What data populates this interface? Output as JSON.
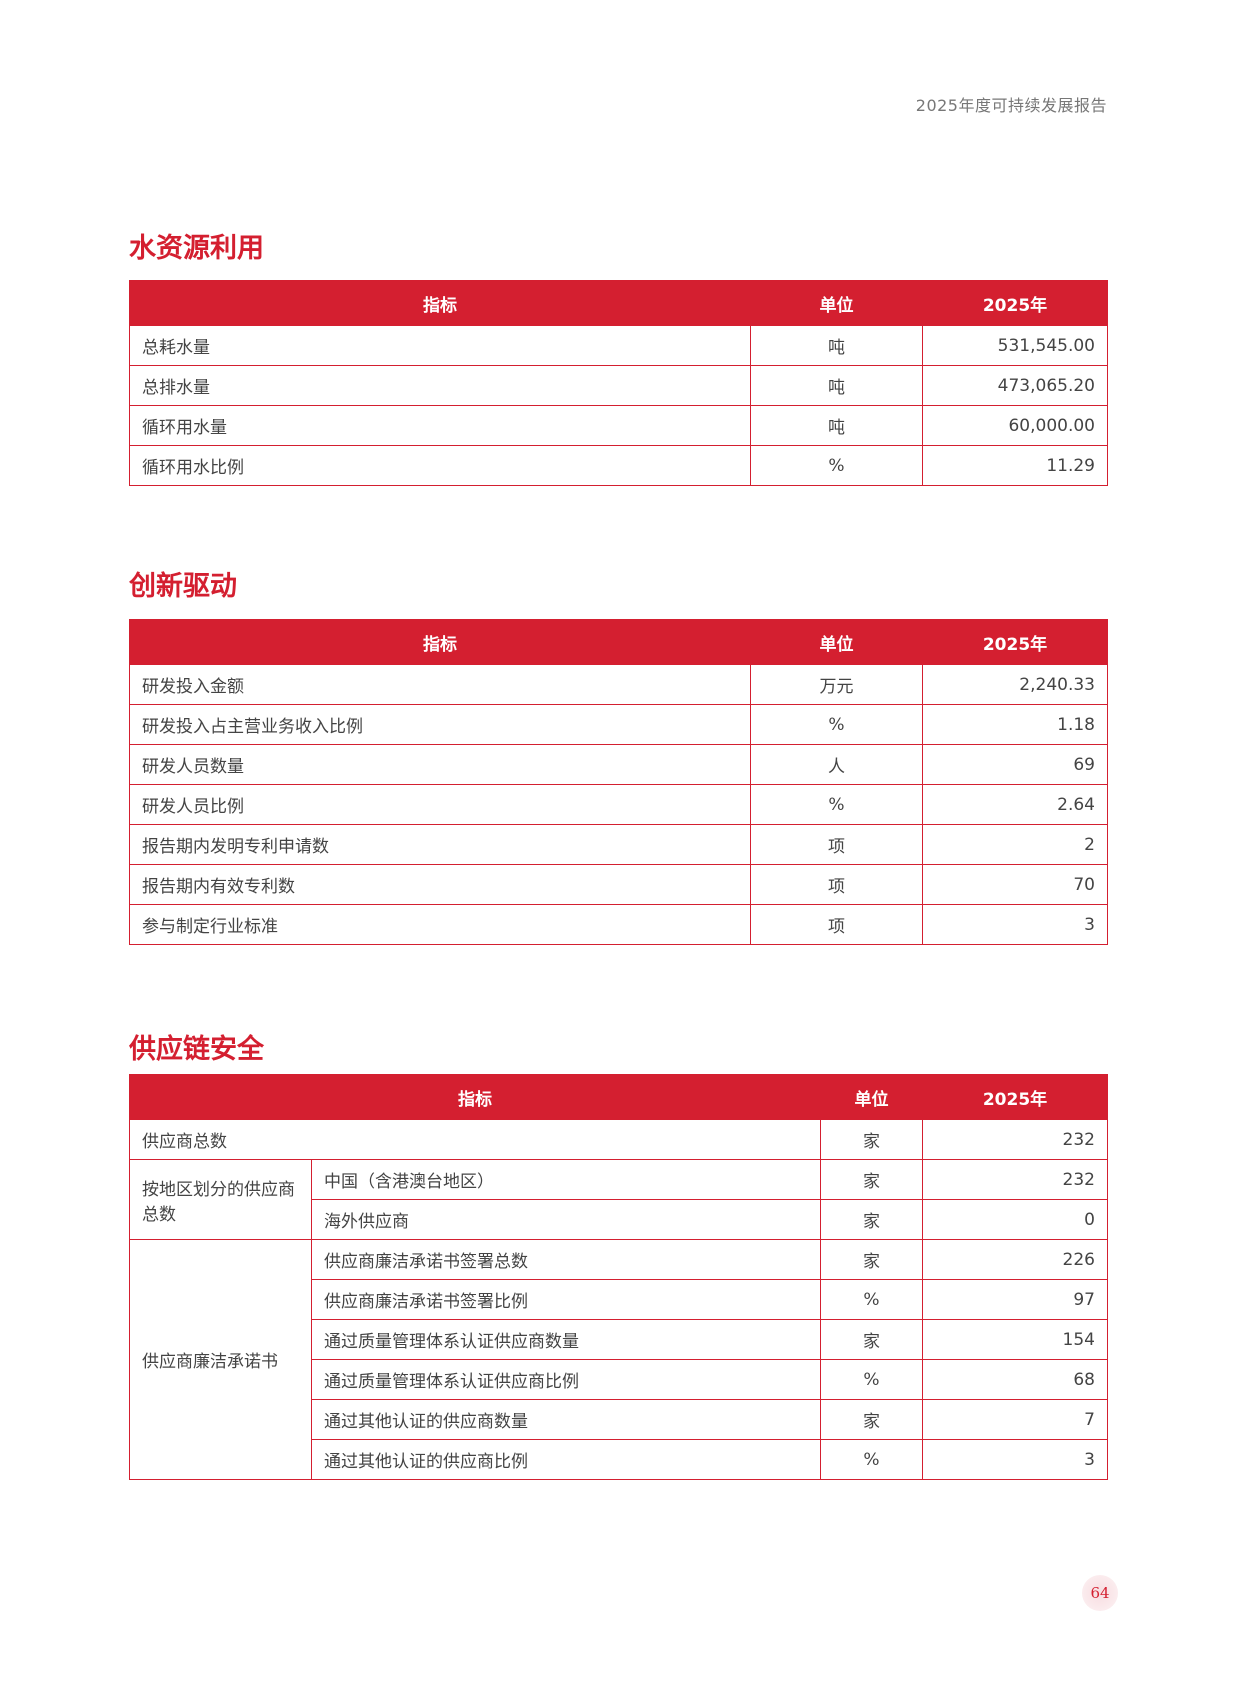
{
  "header": {
    "report_title": "2025年度可持续发展报告"
  },
  "water": {
    "title": "水资源利用",
    "columns": [
      "指标",
      "单位",
      "2025年"
    ],
    "rows": [
      {
        "name": "总耗水量",
        "unit": "吨",
        "value": "531,545.00"
      },
      {
        "name": "总排水量",
        "unit": "吨",
        "value": "473,065.20"
      },
      {
        "name": "循环用水量",
        "unit": "吨",
        "value": "60,000.00"
      },
      {
        "name": "循环用水比例",
        "unit": "%",
        "value": "11.29"
      }
    ]
  },
  "innovation": {
    "title": "创新驱动",
    "columns": [
      "指标",
      "单位",
      "2025年"
    ],
    "rows": [
      {
        "name": "研发投入金额",
        "unit": "万元",
        "value": "2,240.33"
      },
      {
        "name": "研发投入占主营业务收入比例",
        "unit": "%",
        "value": "1.18"
      },
      {
        "name": "研发人员数量",
        "unit": "人",
        "value": "69"
      },
      {
        "name": "研发人员比例",
        "unit": "%",
        "value": "2.64"
      },
      {
        "name": "报告期内发明专利申请数",
        "unit": "项",
        "value": "2"
      },
      {
        "name": "报告期内有效专利数",
        "unit": "项",
        "value": "70"
      },
      {
        "name": "参与制定行业标准",
        "unit": "项",
        "value": "3"
      }
    ]
  },
  "supply": {
    "title": "供应链安全",
    "columns": [
      "指标",
      "单位",
      "2025年"
    ],
    "total": {
      "name": "供应商总数",
      "unit": "家",
      "value": "232"
    },
    "region_group": "按地区划分的供应商总数",
    "region_rows": [
      {
        "name": "中国（含港澳台地区）",
        "unit": "家",
        "value": "232"
      },
      {
        "name": "海外供应商",
        "unit": "家",
        "value": "0"
      }
    ],
    "integrity_group": "供应商廉洁承诺书",
    "integrity_rows": [
      {
        "name": "供应商廉洁承诺书签署总数",
        "unit": "家",
        "value": "226"
      },
      {
        "name": "供应商廉洁承诺书签署比例",
        "unit": "%",
        "value": "97"
      },
      {
        "name": "通过质量管理体系认证供应商数量",
        "unit": "家",
        "value": "154"
      },
      {
        "name": "通过质量管理体系认证供应商比例",
        "unit": "%",
        "value": "68"
      },
      {
        "name": "通过其他认证的供应商数量",
        "unit": "家",
        "value": "7"
      },
      {
        "name": "通过其他认证的供应商比例",
        "unit": "%",
        "value": "3"
      }
    ]
  },
  "footer": {
    "page_number": "64"
  }
}
